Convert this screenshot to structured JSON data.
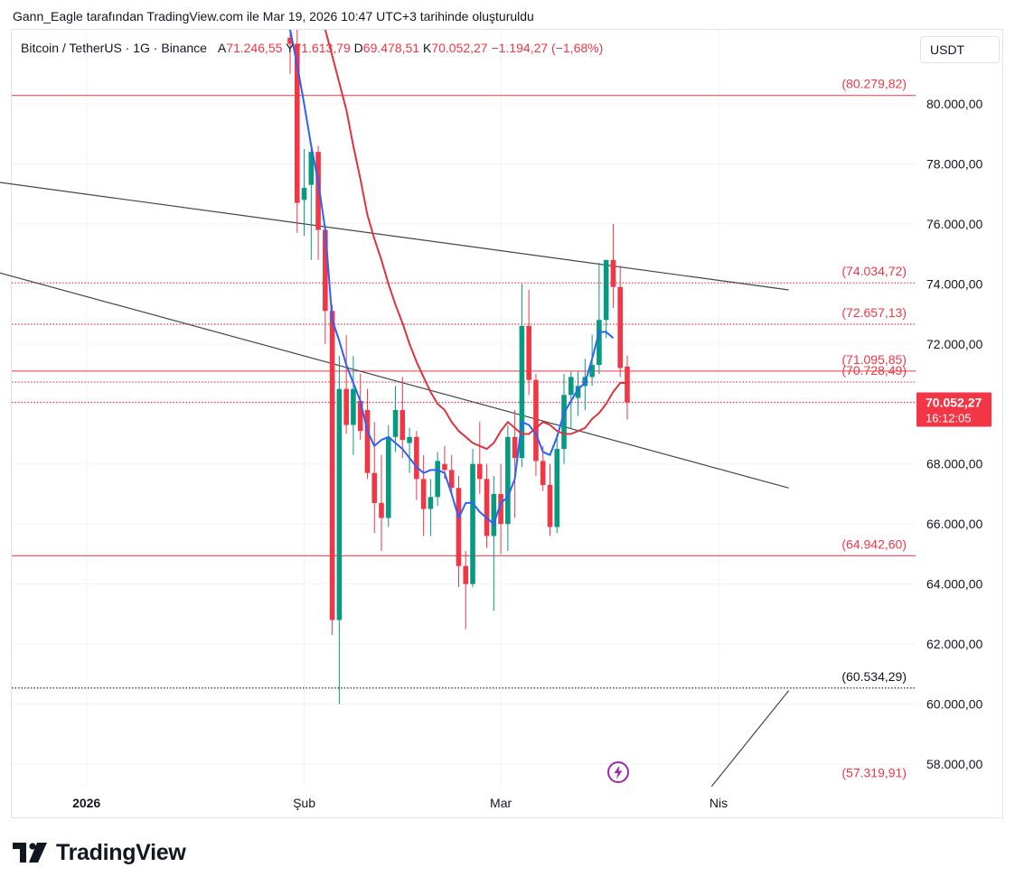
{
  "caption": "Gann_Eagle tarafından TradingView.com ile Mar 19, 2026 10:47 UTC+3 tarihinde oluşturuldu",
  "legend": {
    "symbol": "Bitcoin / TetherUS · 1G · Binance",
    "open_label": "A",
    "open_value": "71.246,55",
    "high_label": "Y",
    "high_value": "71.613,79",
    "low_label": "D",
    "low_value": "69.478,51",
    "close_label": "K",
    "close_value": "70.052,27",
    "change": "−1.194,27 (−1,68%)"
  },
  "currency": "USDT",
  "logo_text": "TradingView",
  "colors": {
    "up": "#089981",
    "down": "#f23645",
    "ema_fast": "#2962ff",
    "ema_slow": "#e0323f",
    "trend": "#434651",
    "level": "#f23645",
    "grid": "#f0f3fa",
    "price_label_bg": "#f23645",
    "flash": "#9c27b0"
  },
  "chart_data": {
    "type": "candlestick",
    "symbol": "Bitcoin / TetherUS",
    "interval": "1G",
    "exchange": "Binance",
    "ylim": [
      56800,
      82200
    ],
    "y_ticks": [
      {
        "value": 58000,
        "label": "58.000,00"
      },
      {
        "value": 60000,
        "label": "60.000,00"
      },
      {
        "value": 62000,
        "label": "62.000,00"
      },
      {
        "value": 64000,
        "label": "64.000,00"
      },
      {
        "value": 66000,
        "label": "66.000,00"
      },
      {
        "value": 68000,
        "label": "68.000,00"
      },
      {
        "value": 70000,
        "label": "70.000,00"
      },
      {
        "value": 72000,
        "label": "72.000,00"
      },
      {
        "value": 74000,
        "label": "74.000,00"
      },
      {
        "value": 76000,
        "label": "76.000,00"
      },
      {
        "value": 78000,
        "label": "78.000,00"
      },
      {
        "value": 80000,
        "label": "80.000,00"
      }
    ],
    "x_ticks": [
      {
        "date": "2026-01-01",
        "label": "2026",
        "bold": true
      },
      {
        "date": "2026-02-01",
        "label": "Şub",
        "bold": false
      },
      {
        "date": "2026-03-01",
        "label": "Mar",
        "bold": false
      },
      {
        "date": "2026-04-01",
        "label": "Nis",
        "bold": false
      }
    ],
    "start_date": "2026-01-30",
    "candles": [
      {
        "date": "2026-01-30",
        "open": 82200,
        "high": 82500,
        "low": 81000,
        "close": 82000
      },
      {
        "date": "2026-01-31",
        "open": 82000,
        "high": 82500,
        "low": 75700,
        "close": 76700
      },
      {
        "date": "2026-02-01",
        "open": 76800,
        "high": 78500,
        "low": 75600,
        "close": 77200
      },
      {
        "date": "2026-02-02",
        "open": 77300,
        "high": 78500,
        "low": 74800,
        "close": 78400
      },
      {
        "date": "2026-02-03",
        "open": 78400,
        "high": 78600,
        "low": 74800,
        "close": 75800
      },
      {
        "date": "2026-02-04",
        "open": 75800,
        "high": 75800,
        "low": 72000,
        "close": 73100
      },
      {
        "date": "2026-02-05",
        "open": 73100,
        "high": 73300,
        "low": 62300,
        "close": 62800
      },
      {
        "date": "2026-02-06",
        "open": 62800,
        "high": 71600,
        "low": 60000,
        "close": 70500
      },
      {
        "date": "2026-02-07",
        "open": 70500,
        "high": 72300,
        "low": 69000,
        "close": 69300
      },
      {
        "date": "2026-02-08",
        "open": 69300,
        "high": 71600,
        "low": 68300,
        "close": 70500
      },
      {
        "date": "2026-02-09",
        "open": 70100,
        "high": 71000,
        "low": 68800,
        "close": 69100
      },
      {
        "date": "2026-02-10",
        "open": 69800,
        "high": 70500,
        "low": 67500,
        "close": 67700
      },
      {
        "date": "2026-02-11",
        "open": 67700,
        "high": 69400,
        "low": 65700,
        "close": 66700
      },
      {
        "date": "2026-02-12",
        "open": 66700,
        "high": 68300,
        "low": 65100,
        "close": 66200
      },
      {
        "date": "2026-02-13",
        "open": 66200,
        "high": 69300,
        "low": 65900,
        "close": 68900
      },
      {
        "date": "2026-02-14",
        "open": 68900,
        "high": 70600,
        "low": 68400,
        "close": 69800
      },
      {
        "date": "2026-02-15",
        "open": 69800,
        "high": 70900,
        "low": 68200,
        "close": 68800
      },
      {
        "date": "2026-02-16",
        "open": 68700,
        "high": 69200,
        "low": 67700,
        "close": 68900
      },
      {
        "date": "2026-02-17",
        "open": 68900,
        "high": 69100,
        "low": 66800,
        "close": 67500
      },
      {
        "date": "2026-02-18",
        "open": 67500,
        "high": 68300,
        "low": 65600,
        "close": 66500
      },
      {
        "date": "2026-02-19",
        "open": 66500,
        "high": 67500,
        "low": 65600,
        "close": 66900
      },
      {
        "date": "2026-02-20",
        "open": 66900,
        "high": 68400,
        "low": 66600,
        "close": 68100
      },
      {
        "date": "2026-02-21",
        "open": 68000,
        "high": 68600,
        "low": 67500,
        "close": 67800
      },
      {
        "date": "2026-02-22",
        "open": 67800,
        "high": 68300,
        "low": 67000,
        "close": 67200
      },
      {
        "date": "2026-02-23",
        "open": 67200,
        "high": 67600,
        "low": 63900,
        "close": 64600
      },
      {
        "date": "2026-02-24",
        "open": 64600,
        "high": 65100,
        "low": 62500,
        "close": 64000
      },
      {
        "date": "2026-02-25",
        "open": 64000,
        "high": 68500,
        "low": 63900,
        "close": 68000
      },
      {
        "date": "2026-02-26",
        "open": 68000,
        "high": 69400,
        "low": 67000,
        "close": 67500
      },
      {
        "date": "2026-02-27",
        "open": 67500,
        "high": 68000,
        "low": 65200,
        "close": 65600
      },
      {
        "date": "2026-02-28",
        "open": 65600,
        "high": 67600,
        "low": 63100,
        "close": 67000
      },
      {
        "date": "2026-03-01",
        "open": 67000,
        "high": 68000,
        "low": 65000,
        "close": 66000
      },
      {
        "date": "2026-03-02",
        "open": 66000,
        "high": 69300,
        "low": 65100,
        "close": 68900
      },
      {
        "date": "2026-03-03",
        "open": 68900,
        "high": 69800,
        "low": 66200,
        "close": 68200
      },
      {
        "date": "2026-03-04",
        "open": 68200,
        "high": 74000,
        "low": 67900,
        "close": 72600
      },
      {
        "date": "2026-03-05",
        "open": 72600,
        "high": 73800,
        "low": 70300,
        "close": 70800
      },
      {
        "date": "2026-03-06",
        "open": 70800,
        "high": 71000,
        "low": 67600,
        "close": 68100
      },
      {
        "date": "2026-03-07",
        "open": 68100,
        "high": 68600,
        "low": 67100,
        "close": 67300
      },
      {
        "date": "2026-03-08",
        "open": 67300,
        "high": 68000,
        "low": 65600,
        "close": 65900
      },
      {
        "date": "2026-03-09",
        "open": 65900,
        "high": 69000,
        "low": 65700,
        "close": 68500
      },
      {
        "date": "2026-03-10",
        "open": 68500,
        "high": 71000,
        "low": 68000,
        "close": 70300
      },
      {
        "date": "2026-03-11",
        "open": 70300,
        "high": 71100,
        "low": 69200,
        "close": 70900
      },
      {
        "date": "2026-03-12",
        "open": 70200,
        "high": 71100,
        "low": 69600,
        "close": 70600
      },
      {
        "date": "2026-03-13",
        "open": 70600,
        "high": 71500,
        "low": 69800,
        "close": 70900
      },
      {
        "date": "2026-03-14",
        "open": 70900,
        "high": 72300,
        "low": 70600,
        "close": 71300
      },
      {
        "date": "2026-03-15",
        "open": 71300,
        "high": 74700,
        "low": 71000,
        "close": 72800
      },
      {
        "date": "2026-03-16",
        "open": 72800,
        "high": 74700,
        "low": 72200,
        "close": 74800
      },
      {
        "date": "2026-03-17",
        "open": 74800,
        "high": 76000,
        "low": 73200,
        "close": 73900
      },
      {
        "date": "2026-03-18",
        "open": 73900,
        "high": 74600,
        "low": 70900,
        "close": 71200
      },
      {
        "date": "2026-03-19",
        "open": 71246.55,
        "high": 71613.79,
        "low": 69478.51,
        "close": 70052.27
      }
    ],
    "ema_fast": [
      82500,
      81300,
      80000,
      78600,
      77400,
      75800,
      72800,
      72100,
      71300,
      70700,
      70100,
      69100,
      68600,
      68800,
      68900,
      68700,
      68500,
      68200,
      67900,
      67700,
      67800,
      67800,
      67700,
      67000,
      66200,
      66700,
      66700,
      66400,
      66200,
      66000,
      66700,
      66900,
      67500,
      69400,
      69300,
      69000,
      68400,
      68300,
      68900,
      69700,
      70100,
      70500,
      70700,
      71500,
      72400,
      72400,
      72200
    ],
    "ema_slow": [
      82500,
      81600,
      80700,
      79800,
      78600,
      77500,
      76300,
      75500,
      74800,
      74000,
      73300,
      72700,
      72000,
      71400,
      70900,
      70400,
      70000,
      69800,
      69400,
      69100,
      68900,
      68700,
      68600,
      68500,
      68700,
      69100,
      69400,
      69200,
      69000,
      69000,
      69200,
      69400,
      69300,
      69100,
      69000,
      69000,
      69100,
      69200,
      69500,
      69700,
      70000,
      70400,
      70700,
      70700
    ],
    "ema_slow_start_date": "2026-02-04",
    "levels": [
      {
        "value": 80279.82,
        "label": "(80.279,82)",
        "style": "solid",
        "color": "#f23645"
      },
      {
        "value": 74034.72,
        "label": "(74.034,72)",
        "style": "dotted",
        "color": "#f23645"
      },
      {
        "value": 72657.13,
        "label": "(72.657,13)",
        "style": "dotted",
        "color": "#f23645"
      },
      {
        "value": 71095.85,
        "label": "(71.095,85)",
        "style": "solid",
        "color": "#f23645"
      },
      {
        "value": 70728.49,
        "label": "(70.728,49)",
        "style": "dotted",
        "color": "#f23645"
      },
      {
        "value": 70052.27,
        "label": "",
        "style": "dotted",
        "color": "#f23645"
      },
      {
        "value": 64942.6,
        "label": "(64.942,60)",
        "style": "solid",
        "color": "#f23645"
      },
      {
        "value": 60534.29,
        "label": "(60.534,29)",
        "style": "dotted",
        "color": "#131722"
      },
      {
        "value": 57319.91,
        "label": "(57.319,91)",
        "style": "none",
        "color": "#f23645"
      }
    ],
    "trendlines": [
      {
        "from_date": "2025-12-05",
        "from_value": 77850,
        "to_date": "2026-04-11",
        "to_value": 73800
      },
      {
        "from_date": "2025-12-05",
        "from_value": 75300,
        "to_date": "2026-04-11",
        "to_value": 67200
      },
      {
        "from_date": "2026-03-31",
        "from_value": 57250,
        "to_date": "2026-04-11",
        "to_value": 60450
      }
    ],
    "last_price": {
      "value": 70052.27,
      "label": "70.052,27",
      "countdown": "16:12:05"
    }
  }
}
